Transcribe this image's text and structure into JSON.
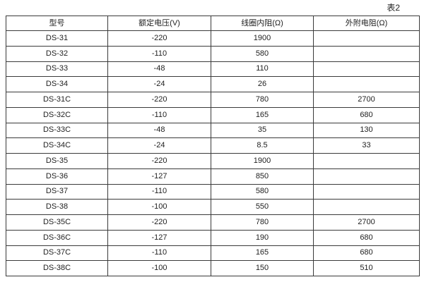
{
  "page": {
    "table_label": "表2"
  },
  "colors": {
    "border": "#3a3a3a",
    "text": "#222222",
    "background": "#ffffff"
  },
  "table": {
    "headers": [
      "型号",
      "额定电压(V)",
      "线圈内阻(Ω)",
      "外附电阻(Ω)"
    ],
    "rows": [
      [
        "DS-31",
        "-220",
        "1900",
        ""
      ],
      [
        "DS-32",
        "-110",
        "580",
        ""
      ],
      [
        "DS-33",
        "-48",
        "110",
        ""
      ],
      [
        "DS-34",
        "-24",
        "26",
        ""
      ],
      [
        "DS-31C",
        "-220",
        "780",
        "2700"
      ],
      [
        "DS-32C",
        "-110",
        "165",
        "680"
      ],
      [
        "DS-33C",
        "-48",
        "35",
        "130"
      ],
      [
        "DS-34C",
        "-24",
        "8.5",
        "33"
      ],
      [
        "DS-35",
        "-220",
        "1900",
        ""
      ],
      [
        "DS-36",
        "-127",
        "850",
        ""
      ],
      [
        "DS-37",
        "-110",
        "580",
        ""
      ],
      [
        "DS-38",
        "-100",
        "550",
        ""
      ],
      [
        "DS-35C",
        "-220",
        "780",
        "2700"
      ],
      [
        "DS-36C",
        "-127",
        "190",
        "680"
      ],
      [
        "DS-37C",
        "-110",
        "165",
        "680"
      ],
      [
        "DS-38C",
        "-100",
        "150",
        "510"
      ]
    ]
  }
}
